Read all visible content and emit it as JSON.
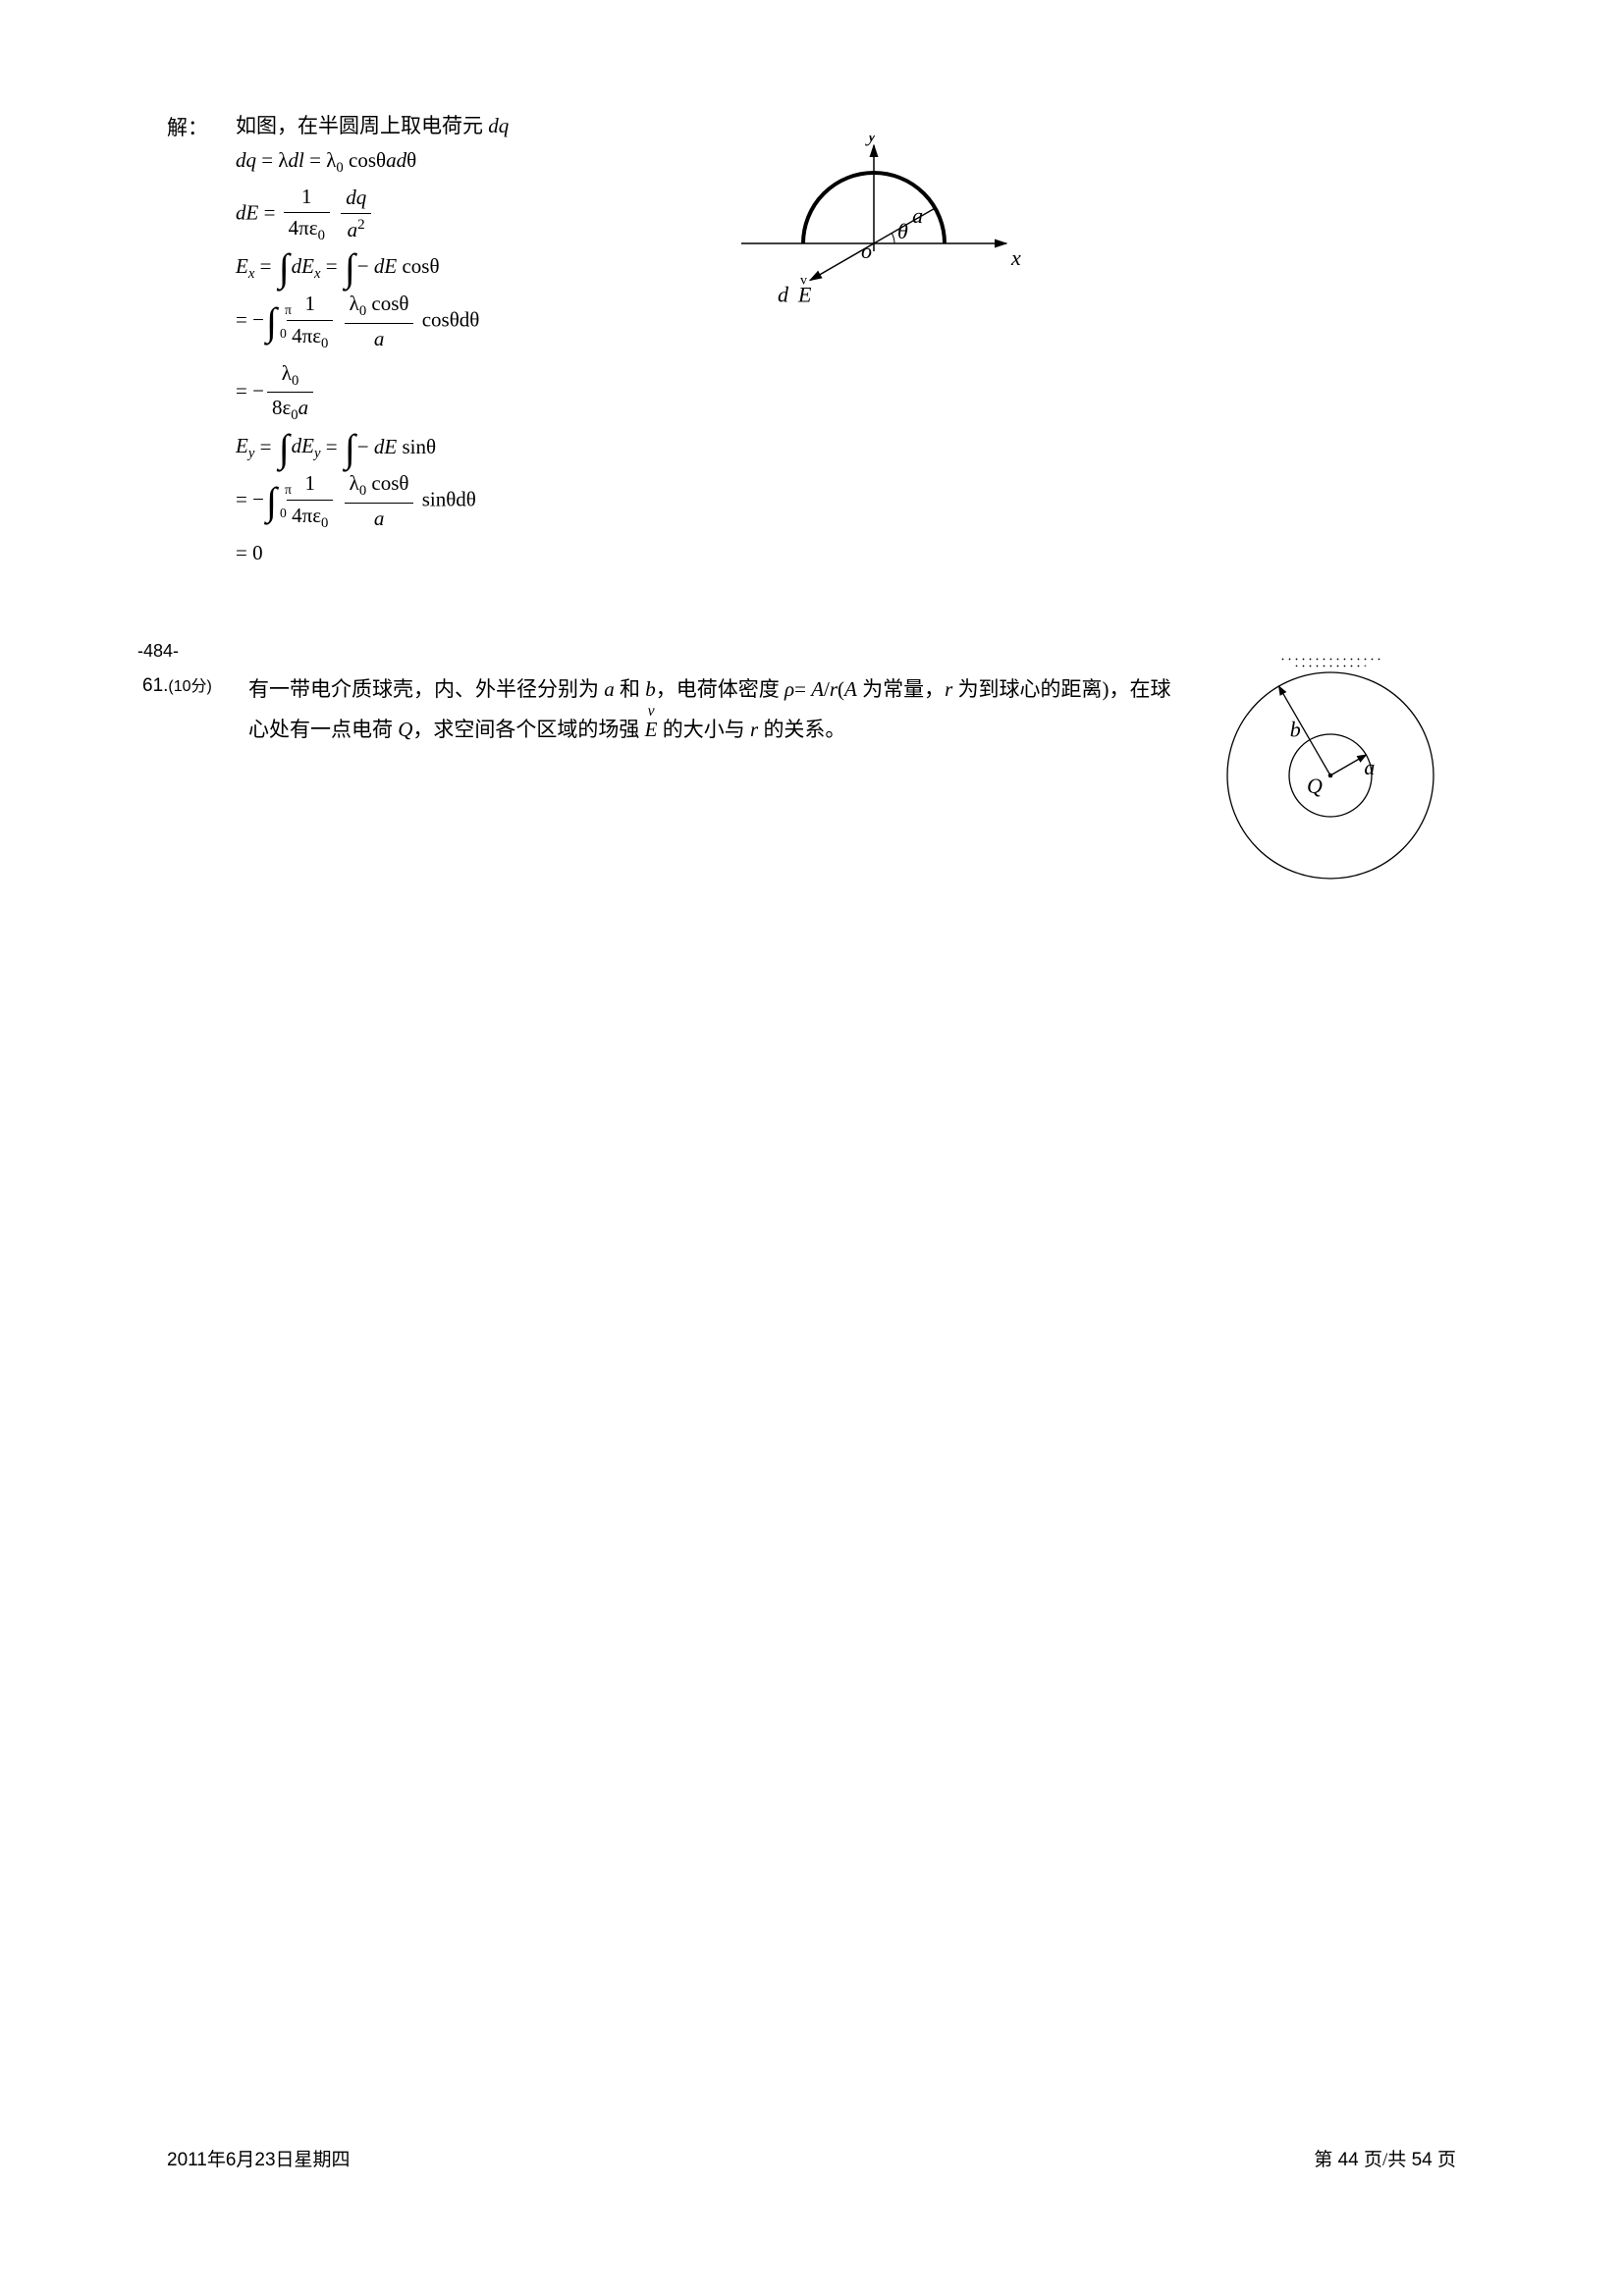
{
  "solution": {
    "label": "解：",
    "line1": "如图，在半圆周上取电荷元 <span class='ital'>dq</span>",
    "eq1": "<span class='ital'>dq</span> = λ<span class='ital'>dl</span> = λ<span class='sub'>0</span> cosθ<span class='ital'>a</span><span class='ital'>d</span>θ",
    "eq2": "<span class='ital'>dE</span> = <span class='frac'><span class='num'>1</span><span class='den'>4πε<span class='sub'>0</span></span></span> <span class='frac'><span class='num'><span class='ital'>dq</span></span><span class='den'><span class='ital'>a</span><span class='sup'>2</span></span></span>",
    "eq3": "<span class='ital'>E<span class='sub'>x</span></span> = <span class='int-wrap'><span class='int'>∫</span></span><span class='ital'>dE<span class='sub'>x</span></span> = <span class='int-wrap'><span class='int'>∫</span></span>− <span class='ital'>dE</span> cosθ",
    "eq4": "= −<span class='int-wrap'><span class='int'>∫</span><span class='int-lo'>0</span><span class='int-hi'>π</span></span>&nbsp;<span class='frac'><span class='num'>1</span><span class='den'>4πε<span class='sub'>0</span></span></span> <span class='frac'><span class='num'>λ<span class='sub'>0</span> cosθ</span><span class='den'><span class='ital'>a</span></span></span> cosθdθ",
    "eq5": "= −<span class='frac'><span class='num'>λ<span class='sub'>0</span></span><span class='den'>8ε<span class='sub'>0</span><span class='ital'>a</span></span></span>",
    "eq6": "<span class='ital'>E<span class='sub'>y</span></span> = <span class='int-wrap'><span class='int'>∫</span></span><span class='ital'>dE<span class='sub'>y</span></span> = <span class='int-wrap'><span class='int'>∫</span></span>− <span class='ital'>dE</span> sinθ",
    "eq7": "= −<span class='int-wrap'><span class='int'>∫</span><span class='int-lo'>0</span><span class='int-hi'>π</span></span>&nbsp;<span class='frac'><span class='num'>1</span><span class='den'>4πε<span class='sub'>0</span></span></span> <span class='frac'><span class='num'>λ<span class='sub'>0</span> cosθ</span><span class='den'><span class='ital'>a</span></span></span> sinθdθ",
    "eq8": "= 0"
  },
  "pageMarker": "-484-",
  "problem": {
    "number": "61.",
    "points": "(10分)",
    "text": "有一带电介质球壳，内、外半径分别为 <span class='ital'>a</span> 和 <span class='ital'>b</span>，电荷体密度 <span class='ital'>ρ</span>= <span class='ital'>A</span>/<span class='ital'>r</span>(<span class='ital'>A</span> 为常量，<span class='ital'>r</span> 为到球心的距离)，在球心处有一点电荷 <span class='ital'>Q</span>，求空间各个区域的场强 <span class='vec-over ital'>E</span> 的大小与 <span class='ital'>r</span> 的关系。"
  },
  "diagram1": {
    "labels": {
      "y": "y",
      "x": "x",
      "a": "a",
      "theta": "θ",
      "o": "o",
      "dE_d": "d",
      "dE_E": "E"
    },
    "colors": {
      "stroke": "#000000",
      "text": "#000000"
    },
    "arc_stroke_width": 4,
    "axis_stroke_width": 1.5,
    "radius": 72,
    "angle_label": 30
  },
  "diagram2": {
    "labels": {
      "Q": "Q",
      "a": "a",
      "b": "b"
    },
    "outer_radius": 105,
    "inner_radius": 42,
    "colors": {
      "stroke": "#000000",
      "dots": "#000000",
      "background": "#ffffff"
    },
    "stroke_width": 1.3
  },
  "footer": {
    "left": "2011年6月23日星期四",
    "right_prefix": "第",
    "right_cur": "44",
    "right_mid": "页/共",
    "right_tot": "54",
    "right_suffix": "页"
  }
}
